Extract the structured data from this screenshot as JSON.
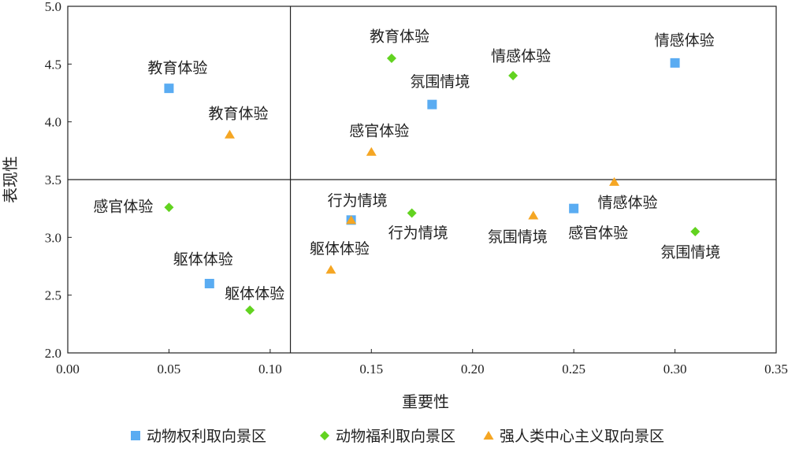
{
  "chart_data": {
    "type": "scatter",
    "xlabel": "重要性",
    "ylabel": "表现性",
    "xlim": [
      0,
      0.35
    ],
    "ylim": [
      2.0,
      5.0
    ],
    "xticks": [
      "0.00",
      "0.05",
      "0.10",
      "0.15",
      "0.20",
      "0.25",
      "0.30",
      "0.35"
    ],
    "yticks": [
      "2.0",
      "2.5",
      "3.0",
      "3.5",
      "4.0",
      "4.5",
      "5.0"
    ],
    "quadrant_lines": {
      "x": 0.11,
      "y": 3.5
    },
    "legend_position": "bottom",
    "series": [
      {
        "name": "动物权利取向景区",
        "marker": "square",
        "color": "#5aacf2",
        "points": [
          {
            "label": "教育体验",
            "x": 0.05,
            "y": 4.29
          },
          {
            "label": "躯体体验",
            "x": 0.07,
            "y": 2.6
          },
          {
            "label": "行为情境",
            "x": 0.14,
            "y": 3.15
          },
          {
            "label": "氛围情境",
            "x": 0.18,
            "y": 4.15
          },
          {
            "label": "感官体验",
            "x": 0.25,
            "y": 3.25
          },
          {
            "label": "情感体验",
            "x": 0.3,
            "y": 4.51
          }
        ]
      },
      {
        "name": "动物福利取向景区",
        "marker": "diamond",
        "color": "#62d320",
        "points": [
          {
            "label": "感官体验",
            "x": 0.05,
            "y": 3.26
          },
          {
            "label": "躯体体验",
            "x": 0.09,
            "y": 2.37
          },
          {
            "label": "教育体验",
            "x": 0.16,
            "y": 4.55
          },
          {
            "label": "行为情境",
            "x": 0.17,
            "y": 3.21
          },
          {
            "label": "情感体验",
            "x": 0.22,
            "y": 4.4
          },
          {
            "label": "氛围情境",
            "x": 0.31,
            "y": 3.05
          }
        ]
      },
      {
        "name": "强人类中心主义取向景区",
        "marker": "triangle",
        "color": "#f5a623",
        "points": [
          {
            "label": "教育体验",
            "x": 0.08,
            "y": 3.89
          },
          {
            "label": "躯体体验",
            "x": 0.13,
            "y": 2.72
          },
          {
            "label": "行为情境",
            "x": 0.14,
            "y": 3.15
          },
          {
            "label": "感官体验",
            "x": 0.15,
            "y": 3.74
          },
          {
            "label": "氛围情境",
            "x": 0.23,
            "y": 3.19
          },
          {
            "label": "情感体验",
            "x": 0.27,
            "y": 3.48
          }
        ]
      }
    ]
  }
}
